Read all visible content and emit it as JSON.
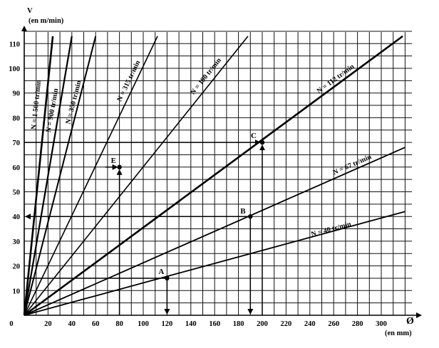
{
  "chart_data": {
    "type": "line",
    "xlabel": "Ø",
    "xunit": "(en mm)",
    "ylabel": "V",
    "yunit": "(en m/min)",
    "xlim": [
      0,
      300
    ],
    "ylim": [
      0,
      115
    ],
    "grid": true,
    "x_ticks": [
      0,
      20,
      40,
      60,
      80,
      100,
      120,
      140,
      160,
      180,
      200,
      220,
      240,
      260,
      280,
      300
    ],
    "y_ticks": [
      10,
      20,
      30,
      40,
      50,
      60,
      70,
      80,
      90,
      100,
      110
    ],
    "series": [
      {
        "name": "N = 1 500 tr/min",
        "rpm": 1500,
        "x": [
          0,
          24
        ],
        "y": [
          0,
          113
        ]
      },
      {
        "name": "N = 900 tr/min",
        "rpm": 900,
        "x": [
          0,
          40
        ],
        "y": [
          0,
          113
        ]
      },
      {
        "name": "N = 350 tr/min",
        "rpm": 350,
        "x": [
          0,
          60
        ],
        "y": [
          0,
          113
        ]
      },
      {
        "name": "N = 315 tr/min",
        "rpm": 315,
        "x": [
          0,
          112
        ],
        "y": [
          0,
          113
        ]
      },
      {
        "name": "N = 190 tr/min",
        "rpm": 190,
        "x": [
          0,
          188
        ],
        "y": [
          0,
          113
        ]
      },
      {
        "name": "N = 112 tr/min",
        "rpm": 112,
        "x": [
          0,
          318
        ],
        "y": [
          0,
          113
        ]
      },
      {
        "name": "N = 67 tr/min",
        "rpm": 67,
        "x": [
          0,
          320
        ],
        "y": [
          0,
          68
        ]
      },
      {
        "name": "N = 40 tr/min",
        "rpm": 40,
        "x": [
          0,
          320
        ],
        "y": [
          0,
          42
        ]
      }
    ],
    "annotations": [
      {
        "label": "A",
        "x": 120,
        "y": 15
      },
      {
        "label": "B",
        "x": 190,
        "y": 40
      },
      {
        "label": "C",
        "x": 200,
        "y": 70
      },
      {
        "label": "E",
        "x": 80,
        "y": 60
      }
    ]
  }
}
